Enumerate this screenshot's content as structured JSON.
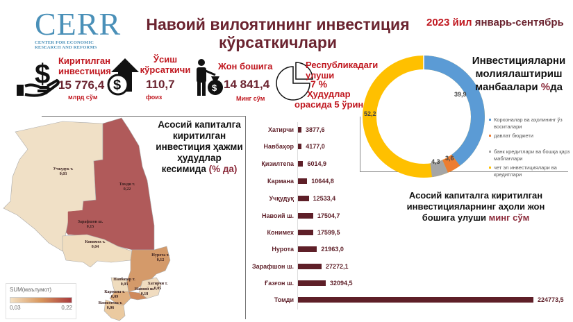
{
  "header": {
    "logo": {
      "main": "CERR",
      "sub_line1": "CENTER FOR ECONOMIC",
      "sub_line2": "RESEARCH AND REFORMS"
    },
    "title_line1": "Навоий вилоятининг инвестиция",
    "title_line2": "кўрсаткичлари",
    "period_year": "2023 йил",
    "period_months": "январь-сентябрь"
  },
  "kpis": [
    {
      "icon": "hand-dollar-icon",
      "label_line1": "Киритилган",
      "label_line2": "инвестиция",
      "value": "15 776,4",
      "unit": "млрд сўм"
    },
    {
      "icon": "growth-arrow-dollar-icon",
      "label_line1": "Ўсиш",
      "label_line2": "кўрсаткичи",
      "value": "110,7",
      "unit": "фоиз"
    },
    {
      "icon": "person-moneybag-icon",
      "label_line1": "Жон бошига",
      "value": "14 841,4",
      "unit": "Минг сўм"
    },
    {
      "icon": "pie-chart-icon",
      "label_line1": "Республикадаги",
      "label_line2": "улуши",
      "value": "7 %",
      "extra_line1": "Ҳудудлар",
      "extra_line2": "орасида 5 ўрин"
    }
  ],
  "donut": {
    "title_line1": "Инвестицияларни",
    "title_line2": "молиялаштириш",
    "title_line3_a": "манбаалари ",
    "title_line3_b": "%",
    "title_line3_c": "да"
  },
  "map": {
    "title_line1": "Асосий капиталга",
    "title_line2": "киритилган",
    "title_line3": "инвестиция ҳажми",
    "title_line4": "ҳудудлар",
    "title_line5_a": "кесимида ",
    "title_line5_b": "(% да)",
    "legend_title": "SUM(маълумот)",
    "legend_min": "0,03",
    "legend_max": "0,22",
    "regions": [
      {
        "name": "Учкудук т.",
        "value": "0,03"
      },
      {
        "name": "Томди т.",
        "value": "0,22"
      },
      {
        "name": "Зарафшон ш.",
        "value": "0,15"
      },
      {
        "name": "Конимех т.",
        "value": "0,04"
      },
      {
        "name": "Нурота т.",
        "value": "0,12"
      },
      {
        "name": "Навбахор т.",
        "value": "0,03"
      },
      {
        "name": "Хатирчи т.",
        "value": "0,05"
      },
      {
        "name": "Кармана т.",
        "value": "0,09"
      },
      {
        "name": "Навоий ш.",
        "value": "0,18"
      },
      {
        "name": "Кизилтепа т.",
        "value": "0,06"
      }
    ]
  },
  "bar_section": {
    "title_line1": "Асосий капиталга киритилган",
    "title_line2": "инвестицияларнинг аҳоли жон",
    "title_line3_a": "бошига улуши ",
    "title_line3_b": "минг сўм"
  },
  "chart_data": [
    {
      "type": "pie",
      "subtype": "donut",
      "title": "Инвестицияларни молиялаштириш манбаалари %да",
      "categories": [
        "Корхоналар ва аҳолининг ўз воситалари",
        "давлат бюджети",
        "банк кредитлари ва бошқа қарз маблағлари",
        "чет эл инвестициялари ва кредитлари"
      ],
      "values": [
        39.9,
        3.6,
        4.3,
        52.2
      ],
      "value_labels": [
        "39,9",
        "3,6",
        "4,3",
        "52,2"
      ],
      "colors": [
        "#5b9bd5",
        "#ed7d31",
        "#a5a5a5",
        "#ffc000"
      ],
      "legend_position": "right"
    },
    {
      "type": "bar",
      "orientation": "horizontal",
      "title": "Асосий капиталга киритилган инвестицияларнинг аҳоли жон бошига улуши минг сўм",
      "categories": [
        "Хатирчи",
        "Навбаҳор",
        "Қизилтепа",
        "Кармана",
        "Учқудуқ",
        "Навоий ш.",
        "Конимех",
        "Нурота",
        "Зарафшон ш.",
        "Ғазғон ш.",
        "Томди"
      ],
      "values": [
        3877.6,
        4177.0,
        6014.9,
        10644.8,
        12533.4,
        17504.7,
        17599.5,
        21963.0,
        27272.1,
        32094.5,
        224773.5
      ],
      "value_labels": [
        "3877,6",
        "4177,0",
        "6014,9",
        "10644,8",
        "12533,4",
        "17504,7",
        "17599,5",
        "21963,0",
        "27272,1",
        "32094,5",
        "224773,5"
      ],
      "color": "#5e1f28",
      "xlabel": "",
      "ylabel": "",
      "grid": false
    },
    {
      "type": "heatmap",
      "subtype": "choropleth",
      "title": "Асосий капиталга киритилган инвестиция ҳажми ҳудудлар кесимида (% да)",
      "categories": [
        "Учкудук т.",
        "Томди т.",
        "Зарафшон ш.",
        "Конимех т.",
        "Нурота т.",
        "Навбахор т.",
        "Хатирчи т.",
        "Кармана т.",
        "Навоий ш.",
        "Кизилтепа т."
      ],
      "values": [
        0.03,
        0.22,
        0.15,
        0.04,
        0.12,
        0.03,
        0.05,
        0.09,
        0.18,
        0.06
      ],
      "legend": {
        "title": "SUM(маълумот)",
        "min": 0.03,
        "max": 0.22,
        "colors": [
          "#f3e1c4",
          "#a93a3e"
        ]
      }
    }
  ]
}
